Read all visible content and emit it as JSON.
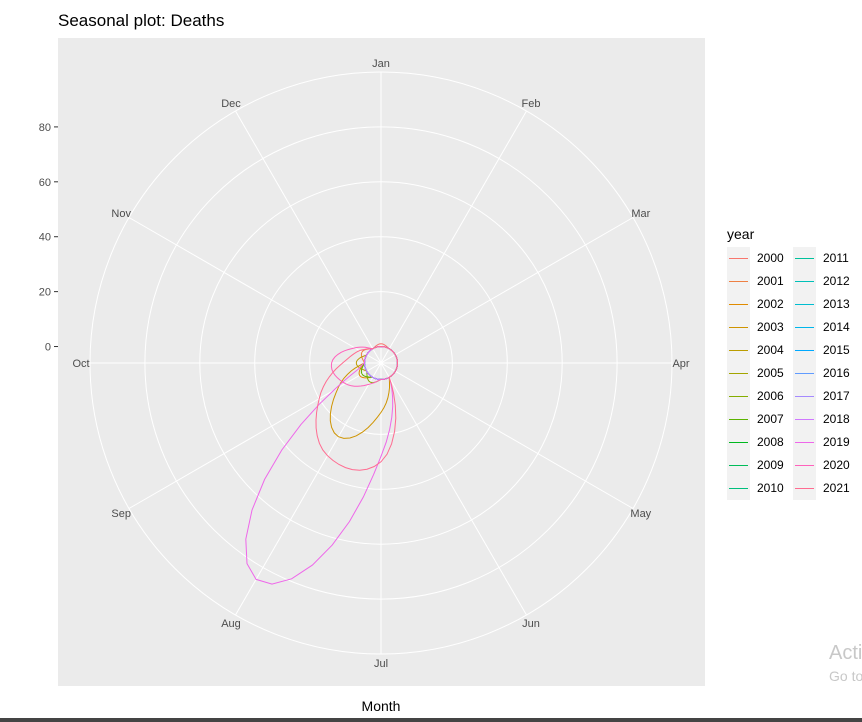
{
  "chart_data": {
    "type": "line",
    "coord": "polar",
    "title": "Seasonal plot: Deaths",
    "xlabel": "Month",
    "ylabel": "",
    "x_categories": [
      "Jan",
      "Feb",
      "Mar",
      "Apr",
      "May",
      "Jun",
      "Jul",
      "Aug",
      "Sep",
      "Oct",
      "Nov",
      "Dec"
    ],
    "y_ticks": [
      0,
      20,
      40,
      60,
      80
    ],
    "ylim": [
      -6,
      100
    ],
    "grid": true,
    "legend_title": "year",
    "legend_placement": "right",
    "series": [
      {
        "name": "2000",
        "color": "#F8766D",
        "values": [
          1,
          0,
          0,
          0,
          0,
          0,
          0,
          0,
          0,
          0,
          0,
          0
        ]
      },
      {
        "name": "2001",
        "color": "#EE8043",
        "values": [
          0,
          0,
          0,
          0,
          0,
          0,
          0,
          0,
          0,
          0,
          2,
          0
        ]
      },
      {
        "name": "2002",
        "color": "#E08B00",
        "values": [
          0,
          0,
          0,
          0,
          0,
          0,
          0,
          0,
          3,
          0,
          0,
          0
        ]
      },
      {
        "name": "2003",
        "color": "#CF9400",
        "values": [
          0,
          0,
          0,
          0,
          0,
          0,
          12,
          25,
          12,
          0,
          0,
          0
        ]
      },
      {
        "name": "2004",
        "color": "#BB9D00",
        "values": [
          0,
          0,
          0,
          0,
          0,
          0,
          0,
          0,
          0,
          3,
          0,
          0
        ]
      },
      {
        "name": "2005",
        "color": "#A3A500",
        "values": [
          0,
          0,
          0,
          0,
          0,
          0,
          0,
          0,
          0,
          0,
          0,
          0
        ]
      },
      {
        "name": "2006",
        "color": "#85AD00",
        "values": [
          0,
          0,
          0,
          0,
          0,
          0,
          0,
          2,
          0,
          0,
          0,
          0
        ]
      },
      {
        "name": "2007",
        "color": "#5BB300",
        "values": [
          0,
          0,
          0,
          0,
          0,
          0,
          0,
          0,
          2,
          0,
          0,
          0
        ]
      },
      {
        "name": "2008",
        "color": "#00B81F",
        "values": [
          0,
          0,
          0,
          0,
          0,
          0,
          0,
          0,
          0,
          0,
          0,
          0
        ]
      },
      {
        "name": "2009",
        "color": "#00BC59",
        "values": [
          0,
          0,
          0,
          0,
          0,
          0,
          0,
          0,
          0,
          0,
          0,
          0
        ]
      },
      {
        "name": "2010",
        "color": "#00BF7D",
        "values": [
          0,
          0,
          0,
          0,
          0,
          0,
          0,
          0,
          0,
          0,
          0,
          0
        ]
      },
      {
        "name": "2011",
        "color": "#00C19C",
        "values": [
          0,
          0,
          0,
          0,
          0,
          0,
          0,
          0,
          0,
          0,
          0,
          0
        ]
      },
      {
        "name": "2012",
        "color": "#00C0B8",
        "values": [
          0,
          0,
          0,
          0,
          0,
          0,
          0,
          0,
          0,
          0,
          0,
          0
        ]
      },
      {
        "name": "2013",
        "color": "#00BDD0",
        "values": [
          0,
          0,
          0,
          0,
          0,
          0,
          0,
          0,
          0,
          0,
          0,
          0
        ]
      },
      {
        "name": "2014",
        "color": "#00B6EB",
        "values": [
          0,
          0,
          0,
          0,
          0,
          0,
          0,
          0,
          0,
          0,
          0,
          0
        ]
      },
      {
        "name": "2015",
        "color": "#00A9FF",
        "values": [
          0,
          0,
          0,
          0,
          0,
          0,
          0,
          0,
          0,
          0,
          0,
          0
        ]
      },
      {
        "name": "2016",
        "color": "#619CFF",
        "values": [
          0,
          0,
          0,
          0,
          0,
          0,
          0,
          0,
          0,
          0,
          0,
          0
        ]
      },
      {
        "name": "2017",
        "color": "#A58AFF",
        "values": [
          0,
          0,
          0,
          0,
          0,
          0,
          0,
          0,
          0,
          0,
          0,
          0
        ]
      },
      {
        "name": "2018",
        "color": "#D078FF",
        "values": [
          0,
          0,
          0,
          0,
          0,
          0,
          0,
          0,
          0,
          0,
          0,
          0
        ]
      },
      {
        "name": "2019",
        "color": "#EE67EA",
        "values": [
          0,
          0,
          0,
          0,
          0,
          0,
          28,
          85,
          14,
          0,
          0,
          0
        ]
      },
      {
        "name": "2020",
        "color": "#FF62BC",
        "values": [
          0,
          0,
          0,
          0,
          0,
          0,
          0,
          3,
          9,
          12,
          5,
          0
        ]
      },
      {
        "name": "2021",
        "color": "#FF6C91",
        "values": [
          0,
          0,
          0,
          0,
          0,
          0,
          30,
          33,
          20,
          8,
          3,
          0
        ]
      }
    ]
  },
  "watermark": {
    "line1": "Acti",
    "line2": "Go to"
  }
}
